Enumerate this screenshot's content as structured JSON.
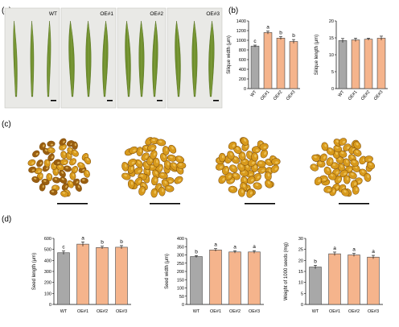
{
  "panels": {
    "a": {
      "label": "(a)",
      "image_labels": [
        "WT",
        "OE#1",
        "OE#2",
        "OE#3"
      ]
    },
    "b": {
      "label": "(b)"
    },
    "c": {
      "label": "(c)"
    },
    "d": {
      "label": "(d)"
    }
  },
  "colors": {
    "wt_bar": "#a8a8a8",
    "oe_bar": "#f5b48c",
    "silique": "#6f8f2c",
    "seed": "#d89a1c",
    "seed_dark": "#9b5f10"
  },
  "chart_data": [
    {
      "id": "silique-width",
      "type": "bar",
      "categories": [
        "WT",
        "OE#1",
        "OE#2",
        "OE#3"
      ],
      "values": [
        880,
        1160,
        1045,
        975
      ],
      "errors": [
        20,
        30,
        30,
        40
      ],
      "letters": [
        "c",
        "a",
        "b",
        "b"
      ],
      "ylabel": "Silique width (μm)",
      "ylim": [
        0,
        1400
      ],
      "yticks": [
        "0",
        "200",
        "400",
        "600",
        "800",
        "1000",
        "1200",
        "1400"
      ],
      "ytick_values": [
        0,
        200,
        400,
        600,
        800,
        1000,
        1200,
        1400
      ]
    },
    {
      "id": "silique-length",
      "type": "bar",
      "categories": [
        "WT",
        "OE#1",
        "OE#2",
        "OE#3"
      ],
      "values": [
        14.2,
        14.4,
        14.6,
        14.9
      ],
      "errors": [
        0.6,
        0.5,
        0.3,
        0.6
      ],
      "letters": [
        "",
        "",
        "",
        ""
      ],
      "ylabel": "Silique length (μm)",
      "ylim": [
        0,
        20
      ],
      "yticks": [
        "0",
        "5",
        "10",
        "15",
        "20"
      ],
      "ytick_values": [
        0,
        5,
        10,
        15,
        20
      ]
    },
    {
      "id": "seed-length",
      "type": "bar",
      "categories": [
        "WT",
        "OE#1",
        "OE#2",
        "OE#3"
      ],
      "values": [
        470,
        548,
        517,
        520
      ],
      "errors": [
        15,
        20,
        12,
        15
      ],
      "letters": [
        "c",
        "a",
        "b",
        "b"
      ],
      "ylabel": "Seed length (μm)",
      "ylim": [
        0,
        600
      ],
      "yticks": [
        "0",
        "100",
        "200",
        "300",
        "400",
        "500",
        "600"
      ],
      "ytick_values": [
        0,
        100,
        200,
        300,
        400,
        500,
        600
      ]
    },
    {
      "id": "seed-width",
      "type": "bar",
      "categories": [
        "WT",
        "OE#1",
        "OE#2",
        "OE#3"
      ],
      "values": [
        290,
        330,
        318,
        318
      ],
      "errors": [
        6,
        8,
        7,
        8
      ],
      "letters": [
        "b",
        "a",
        "a",
        "a"
      ],
      "ylabel": "Seed width (μm)",
      "ylim": [
        0,
        400
      ],
      "yticks": [
        "0",
        "50",
        "100",
        "150",
        "200",
        "250",
        "300",
        "350",
        "400"
      ],
      "ytick_values": [
        0,
        50,
        100,
        150,
        200,
        250,
        300,
        350,
        400
      ]
    },
    {
      "id": "seed-weight",
      "type": "bar",
      "categories": [
        "WT",
        "OE#1",
        "OE#2",
        "OE#3"
      ],
      "values": [
        17,
        23,
        22.5,
        21.5
      ],
      "errors": [
        0.8,
        0.8,
        0.7,
        0.8
      ],
      "letters": [
        "b",
        "a",
        "a",
        "a"
      ],
      "ylabel": "Weight of 1000 seeds (mg)",
      "ylim": [
        0,
        30
      ],
      "yticks": [
        "0",
        "5",
        "10",
        "15",
        "20",
        "25",
        "30"
      ],
      "ytick_values": [
        0,
        5,
        10,
        15,
        20,
        25,
        30
      ]
    }
  ]
}
